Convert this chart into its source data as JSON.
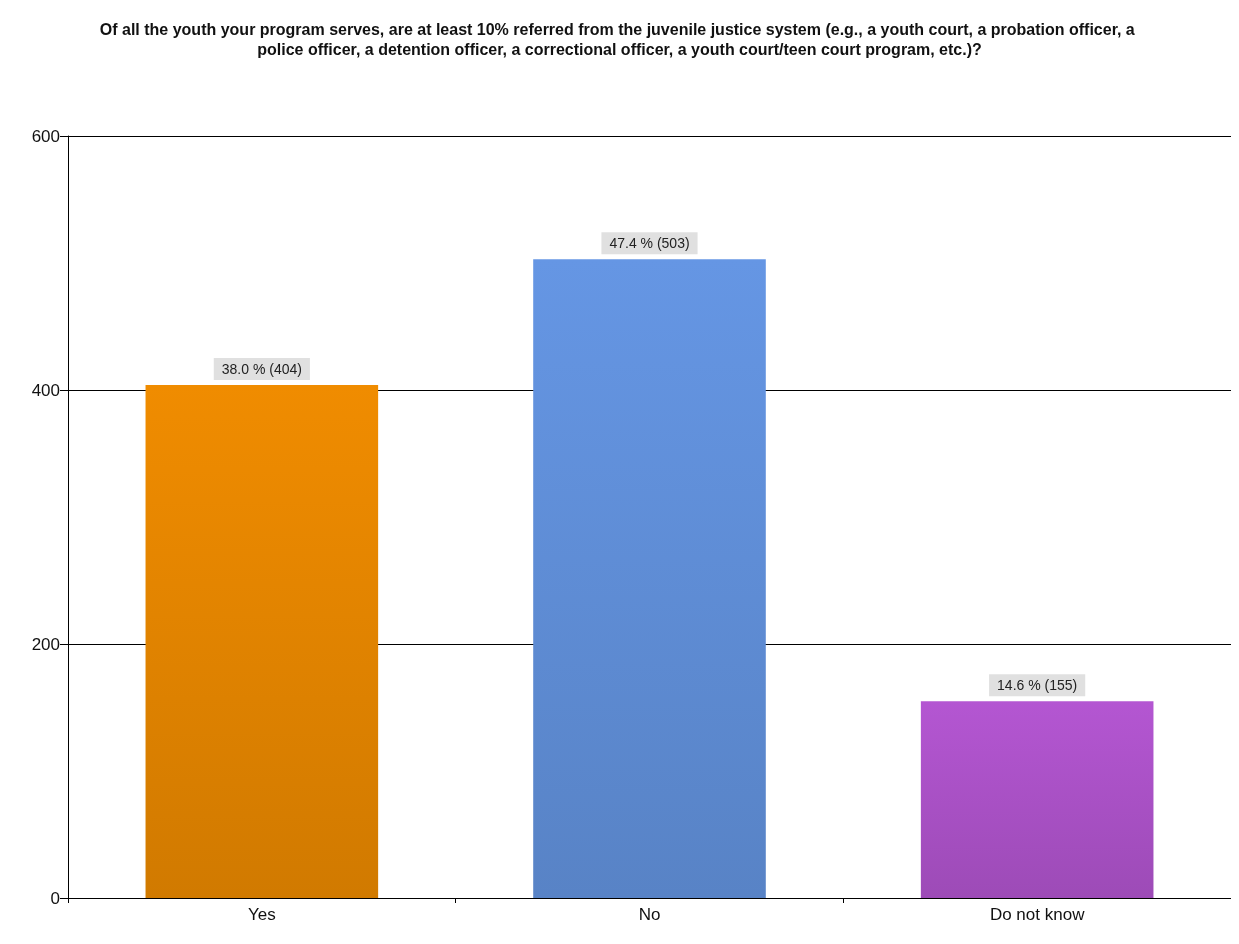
{
  "chart_data": {
    "type": "bar",
    "title": "Of all the youth your program serves, are at least 10% referred from the juvenile justice system (e.g., a youth court, a probation officer, a police officer, a detention officer, a correctional officer, a youth court/teen court program, etc.)?",
    "categories": [
      "Yes",
      "No",
      "Do not know"
    ],
    "values": [
      404,
      503,
      155
    ],
    "colors": [
      "#f08c00",
      "#6596e4",
      "#b456d2"
    ],
    "value_labels": [
      "38.0 % (404)",
      "47.4 % (503)",
      "14.6 % (155)"
    ],
    "ylim": [
      0,
      600
    ],
    "yticks": [
      0,
      200,
      400,
      600
    ],
    "grid": "y"
  }
}
